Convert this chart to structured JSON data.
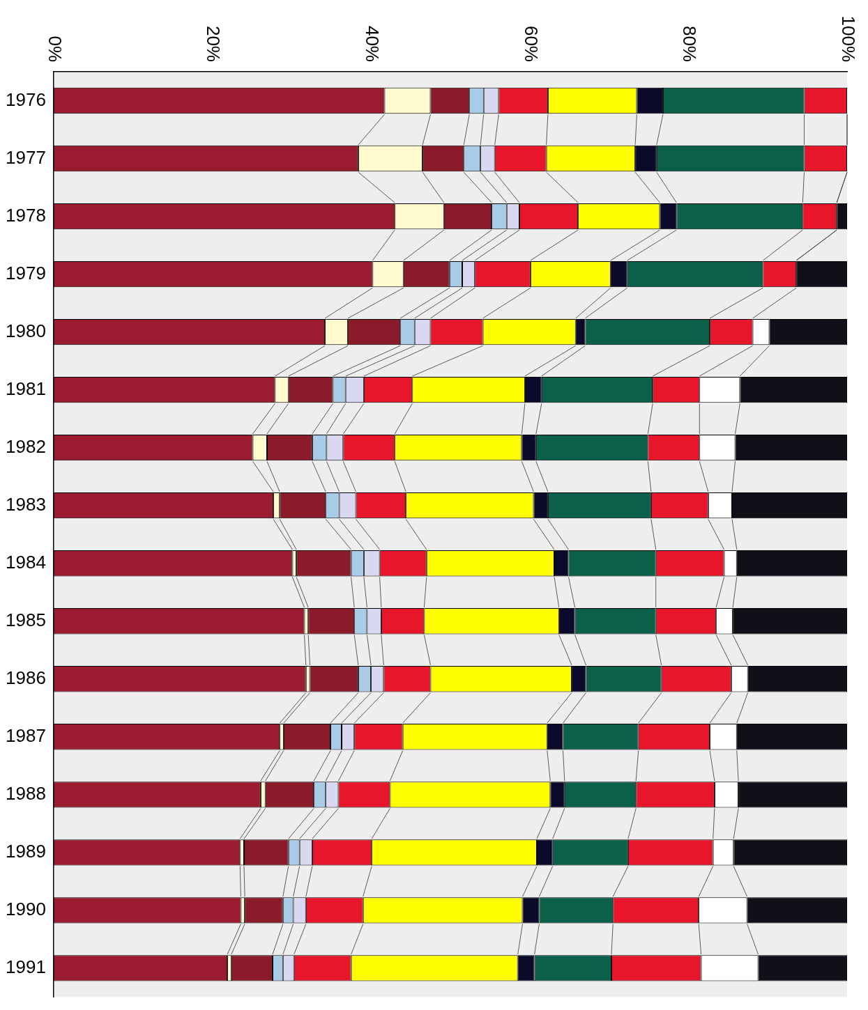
{
  "chart_data": {
    "type": "bar",
    "orientation": "horizontal",
    "stacked": true,
    "legend": false,
    "grid": false,
    "categories": [
      "1976",
      "1977",
      "1978",
      "1979",
      "1980",
      "1981",
      "1982",
      "1983",
      "1984",
      "1985",
      "1986",
      "1987",
      "1988",
      "1989",
      "1990",
      "1991"
    ],
    "xlim": [
      0,
      100
    ],
    "xticks": [
      {
        "value": 0,
        "label": "0%"
      },
      {
        "value": 20,
        "label": "20%"
      },
      {
        "value": 40,
        "label": "40%"
      },
      {
        "value": 60,
        "label": "60%"
      },
      {
        "value": 80,
        "label": "80%"
      },
      {
        "value": 100,
        "label": "100%"
      }
    ],
    "series": [
      {
        "color": "#9b1b30",
        "values": [
          41.7,
          38.4,
          43.0,
          40.2,
          34.2,
          27.9,
          25.1,
          27.7,
          30.1,
          31.6,
          31.8,
          28.5,
          26.1,
          23.5,
          23.6,
          21.9
        ]
      },
      {
        "color": "#fffacd",
        "values": [
          5.8,
          8.1,
          6.2,
          3.9,
          2.9,
          1.7,
          1.8,
          0.8,
          0.5,
          0.5,
          0.5,
          0.5,
          0.6,
          0.5,
          0.5,
          0.5
        ]
      },
      {
        "color": "#8b1a2b",
        "values": [
          4.9,
          5.2,
          6.0,
          5.8,
          6.6,
          5.6,
          5.7,
          5.8,
          6.9,
          5.8,
          6.1,
          5.9,
          6.1,
          5.6,
          4.8,
          5.2
        ]
      },
      {
        "color": "#a8cce8",
        "values": [
          1.8,
          2.1,
          1.9,
          1.6,
          1.8,
          1.6,
          1.8,
          1.7,
          1.6,
          1.6,
          1.6,
          1.4,
          1.5,
          1.4,
          1.3,
          1.3
        ]
      },
      {
        "color": "#d8d8f0",
        "values": [
          1.9,
          1.8,
          1.6,
          1.6,
          2.0,
          2.3,
          2.1,
          2.1,
          2.0,
          1.8,
          1.6,
          1.6,
          1.6,
          1.6,
          1.6,
          1.4
        ]
      },
      {
        "color": "#e8162a",
        "values": [
          6.2,
          6.5,
          7.4,
          7.0,
          6.6,
          6.1,
          6.5,
          6.3,
          5.9,
          5.4,
          5.9,
          6.1,
          6.5,
          7.5,
          7.2,
          7.2
        ]
      },
      {
        "color": "#ffff00",
        "values": [
          11.2,
          11.2,
          10.3,
          10.1,
          11.7,
          14.2,
          16.0,
          16.1,
          16.1,
          17.0,
          17.8,
          18.2,
          20.2,
          20.8,
          20.1,
          21.0
        ]
      },
      {
        "color": "#0c0a2a",
        "values": [
          3.3,
          2.7,
          2.1,
          2.1,
          1.2,
          2.1,
          1.8,
          1.8,
          1.8,
          2.0,
          1.8,
          2.0,
          1.8,
          2.0,
          2.1,
          2.1
        ]
      },
      {
        "color": "#0a6048",
        "values": [
          17.8,
          18.6,
          15.9,
          17.1,
          15.7,
          14.0,
          14.1,
          13.0,
          11.0,
          10.2,
          9.5,
          9.5,
          9.0,
          9.5,
          9.3,
          9.7
        ]
      },
      {
        "color": "#e8162a",
        "values": [
          5.4,
          5.4,
          4.3,
          4.2,
          5.4,
          5.9,
          6.5,
          7.2,
          8.6,
          7.6,
          8.8,
          9.0,
          9.9,
          10.7,
          10.8,
          11.3
        ]
      },
      {
        "color": "#ffffff",
        "values": [
          null,
          null,
          null,
          null,
          2.1,
          5.1,
          4.5,
          3.0,
          1.6,
          2.1,
          2.1,
          3.4,
          3.0,
          2.6,
          6.1,
          7.2
        ]
      },
      {
        "color": "#111018",
        "values": [
          null,
          null,
          1.3,
          6.4,
          9.8,
          13.5,
          14.1,
          14.5,
          13.9,
          14.4,
          12.5,
          13.9,
          13.7,
          14.3,
          12.6,
          11.2
        ]
      }
    ]
  }
}
